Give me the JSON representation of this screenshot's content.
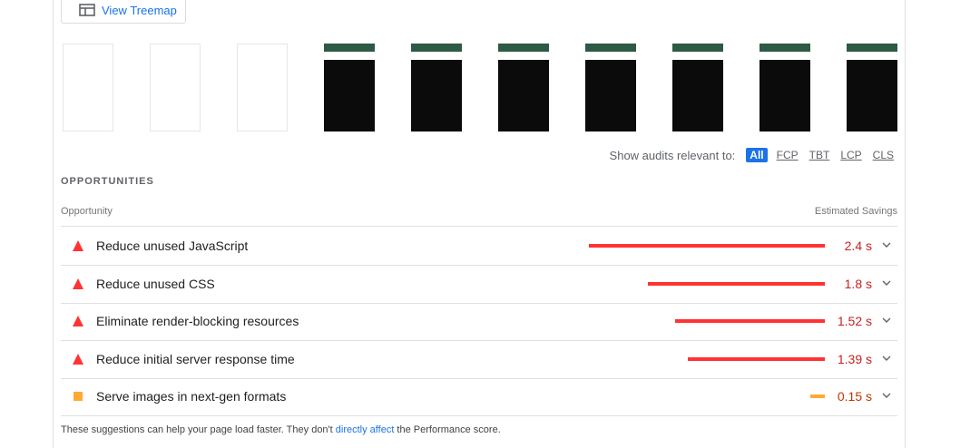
{
  "treemap_button": "View Treemap",
  "filter": {
    "label": "Show audits relevant to:",
    "options": [
      "All",
      "FCP",
      "TBT",
      "LCP",
      "CLS"
    ],
    "active": "All"
  },
  "section_title": "OPPORTUNITIES",
  "table": {
    "columns": [
      "Opportunity",
      "Estimated Savings"
    ],
    "rows": [
      {
        "title": "Reduce unused JavaScript",
        "savings": {
          "value": 2.4,
          "label": "2.4 s"
        },
        "icon": "triangle",
        "color": "#ff3333"
      },
      {
        "title": "Reduce unused CSS",
        "savings": {
          "value": 1.8,
          "label": "1.8 s"
        },
        "icon": "triangle",
        "color": "#ff3333"
      },
      {
        "title": "Eliminate render-blocking resources",
        "savings": {
          "value": 1.52,
          "label": "1.52 s"
        },
        "icon": "triangle",
        "color": "#ff3333"
      },
      {
        "title": "Reduce initial server response time",
        "savings": {
          "value": 1.39,
          "label": "1.39 s"
        },
        "icon": "triangle",
        "color": "#ff3333"
      },
      {
        "title": "Serve images in next-gen formats",
        "savings": {
          "value": 0.15,
          "label": "0.15 s"
        },
        "icon": "square",
        "color": "#ffaa33"
      }
    ]
  },
  "footer": {
    "before": "These suggestions can help your page load faster. They don't ",
    "link": "directly affect",
    "after": " the Performance score."
  }
}
